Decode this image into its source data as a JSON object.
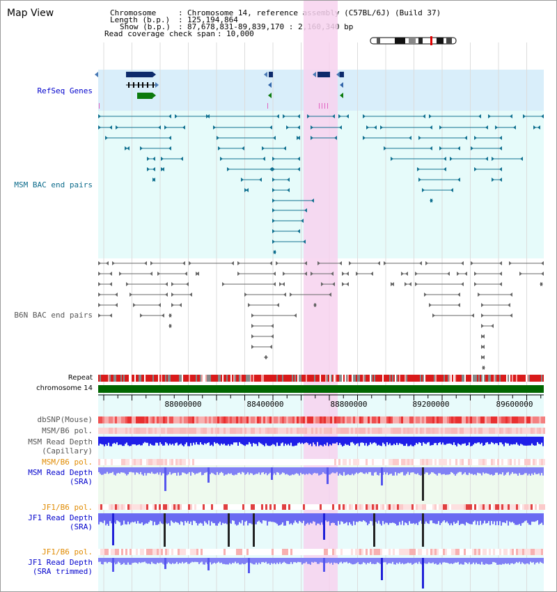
{
  "title": "Map View",
  "info": {
    "chromosome_label": "Chromosome",
    "chromosome_value": "Chromosome 14, reference assembly (C57BL/6J) (Build 37)",
    "length_label": "Length (b.p.)",
    "length_value": "125,194,864",
    "show_label": "Show (b.p.)",
    "show_value": "87,678,831-89,839,170 : 2,160,340 bp",
    "coverage_label": "Read coverage check span",
    "coverage_value": "10,000"
  },
  "tracks": {
    "refseq": "RefSeq Genes",
    "msm_bac": "MSM BAC end pairs",
    "b6n_bac": "B6N BAC end pairs",
    "repeat": "Repeat",
    "chromosome": "chromosome 14",
    "dbsnp": "dbSNP(Mouse)",
    "msm_b6_pol_1": "MSM/B6 pol.",
    "msm_depth_cap_1": "MSM Read Depth",
    "msm_depth_cap_2": "(Capillary)",
    "msm_b6_pol_2": "MSM/B6 pol.",
    "msm_depth_sra_1": "MSM Read Depth",
    "msm_depth_sra_2": "(SRA)",
    "jf1_b6_pol_1": "JF1/B6 pol.",
    "jf1_depth_sra_1": "JF1 Read Depth",
    "jf1_depth_sra_2": "(SRA)",
    "jf1_b6_pol_2": "JF1/B6 pol.",
    "jf1_depth_trim_1": "JF1 Read Depth",
    "jf1_depth_trim_2": "(SRA trimmed)"
  },
  "axis": {
    "ticks": [
      "88000000",
      "88400000",
      "88800000",
      "89200000",
      "89600000"
    ]
  },
  "colors": {
    "refseq_bg": "#d9eefa",
    "msm_bg": "#e6fbfa",
    "highlight": "#f7d2ef",
    "repeat_red": "#d91a1a",
    "chrom_green": "#006600",
    "depth_blue": "#1f1fe8",
    "depth_light": "#8080f5",
    "msm_line": "#107090",
    "b6n_line": "#666666"
  }
}
